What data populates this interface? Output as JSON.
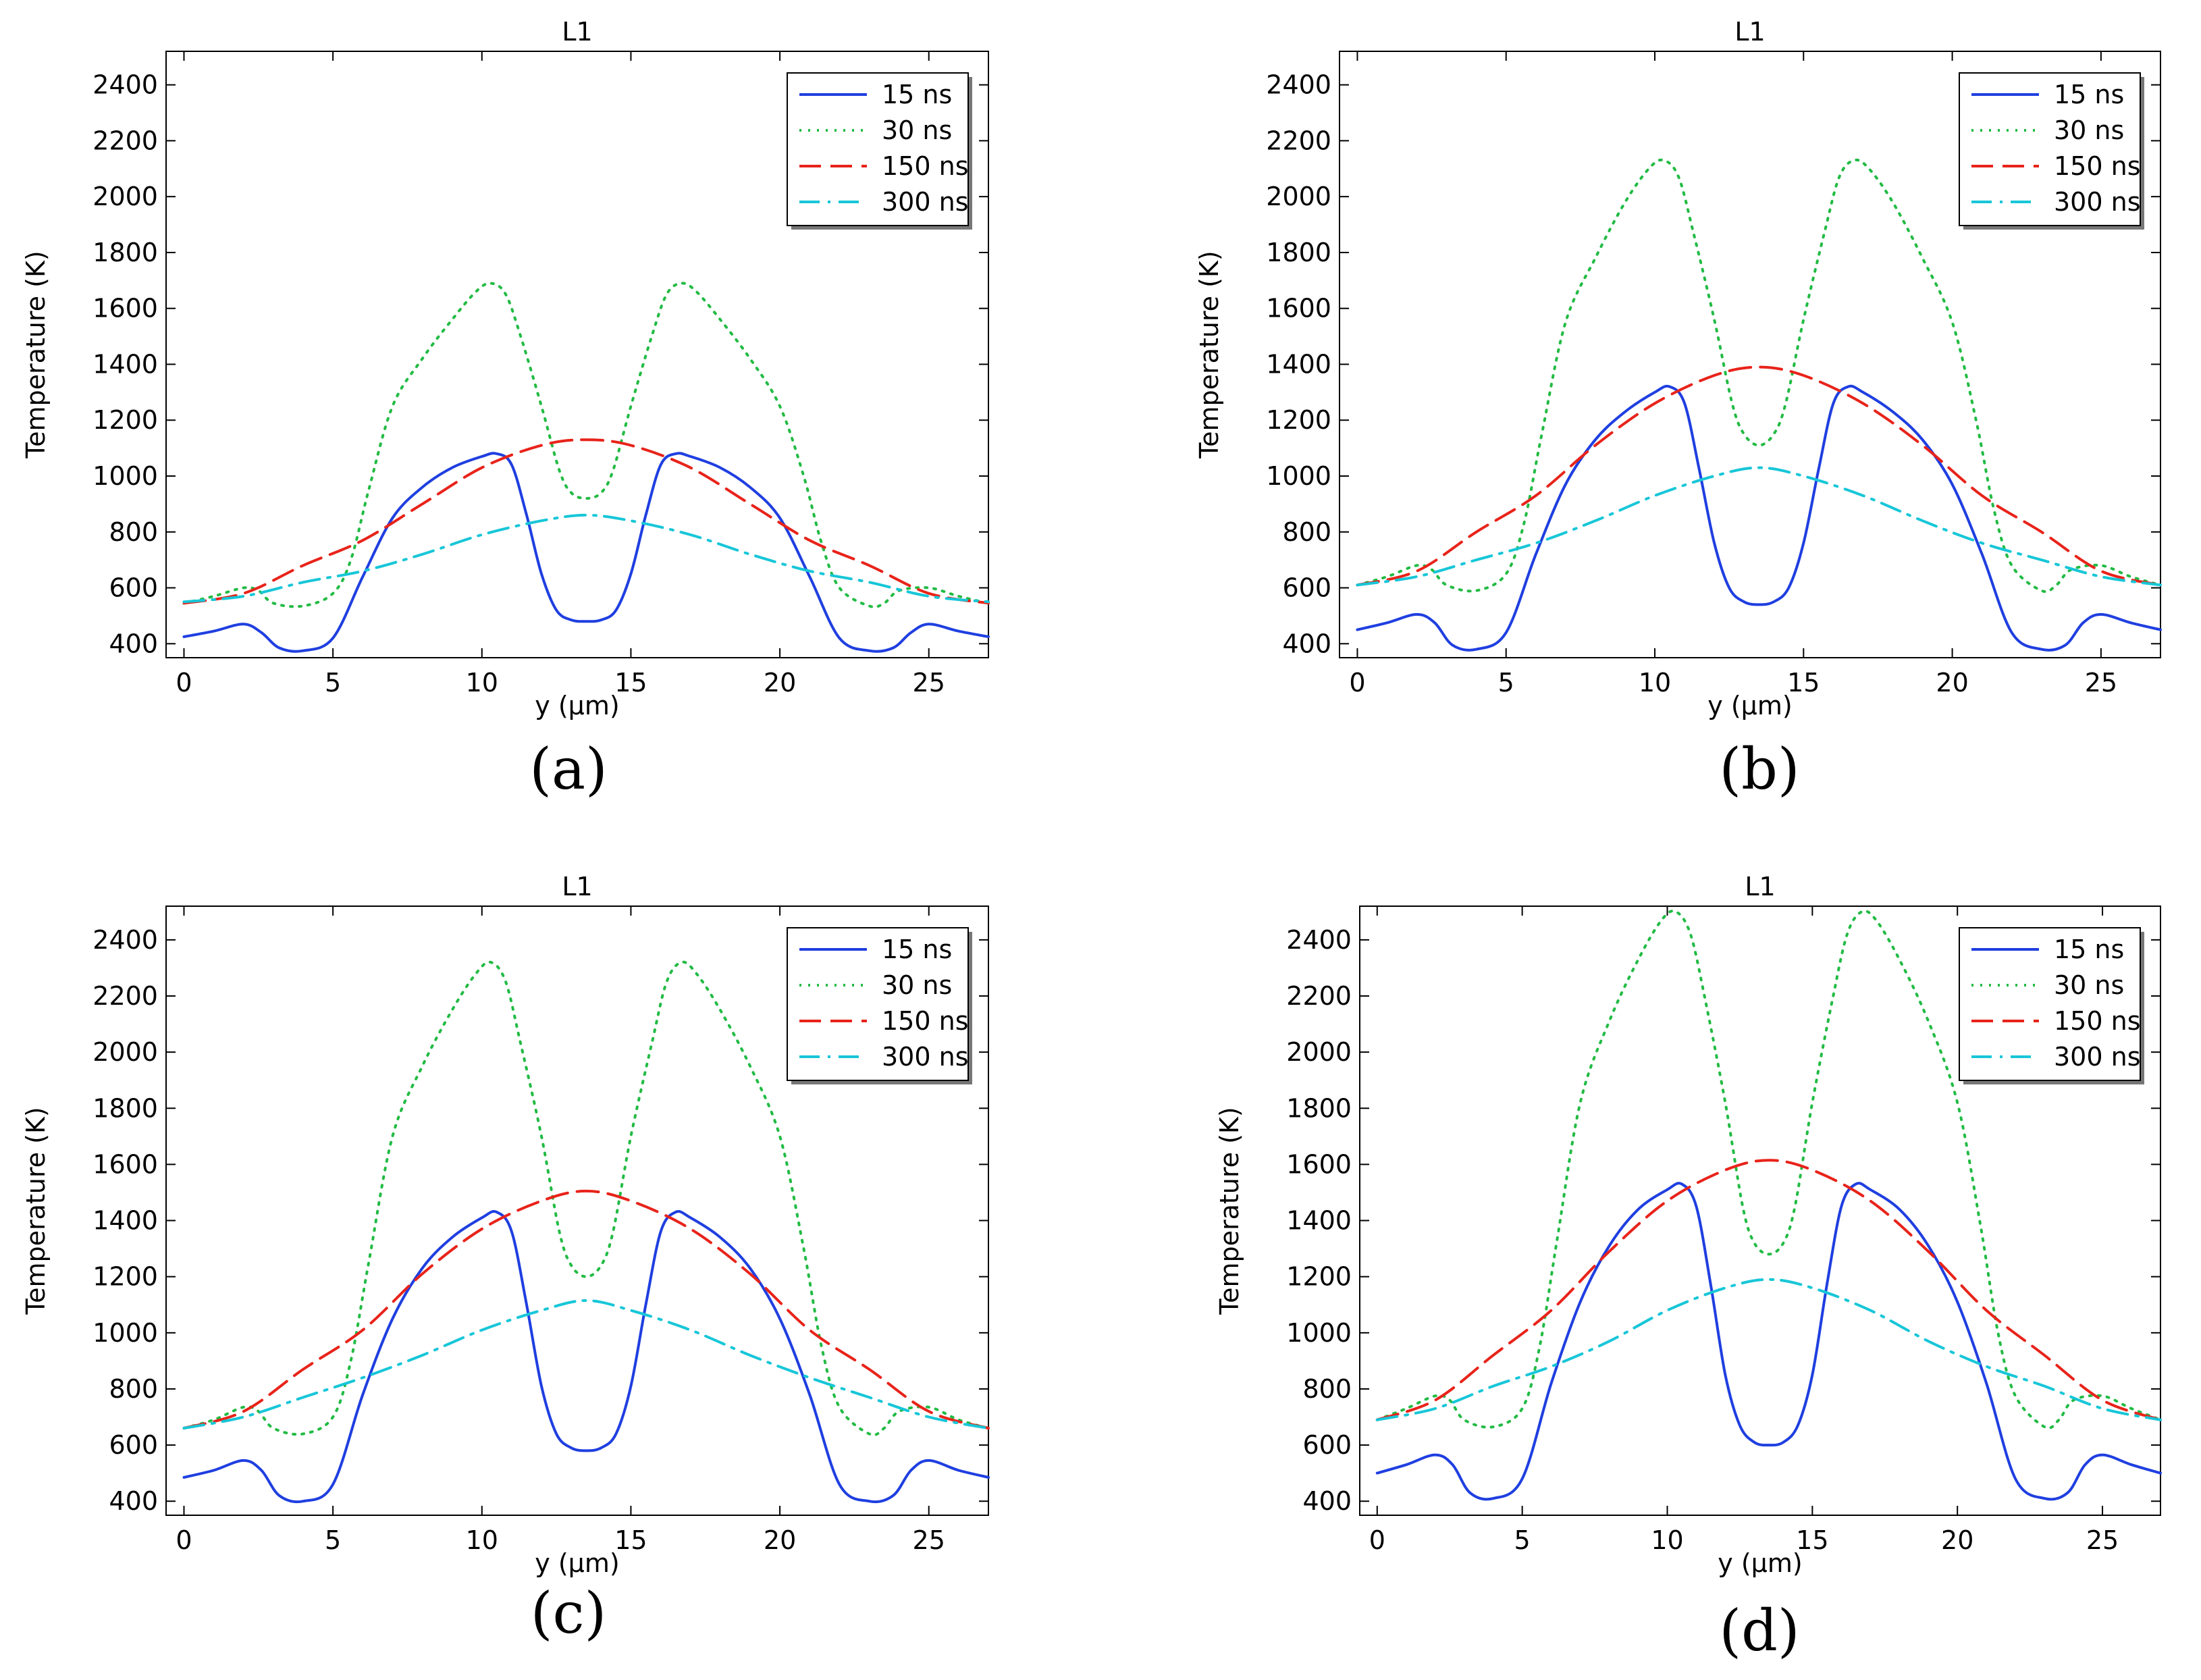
{
  "chart_data": [
    {
      "type": "line",
      "title": "L1",
      "caption": "(a)",
      "xlabel": "y (µm)",
      "ylabel": "Temperature (K)",
      "xlim": [
        -0.6,
        27
      ],
      "ylim": [
        350,
        2520
      ],
      "xticks": [
        0,
        5,
        10,
        15,
        20,
        25
      ],
      "yticks": [
        400,
        600,
        800,
        1000,
        1200,
        1400,
        1600,
        1800,
        2000,
        2200,
        2400
      ],
      "grid": false,
      "legend_position": "top-right",
      "series": [
        {
          "name": "15 ns",
          "color": "#1f3fe0",
          "dash": "solid",
          "x": [
            0,
            1,
            2,
            2.6,
            3.2,
            4,
            5,
            6,
            7,
            8,
            9,
            10,
            10.5,
            11,
            11.5,
            12,
            12.5,
            13,
            13.5,
            14,
            14.5,
            15,
            15.5,
            16,
            16.5,
            17,
            18,
            19,
            20,
            21,
            22,
            23,
            23.8,
            24.4,
            25,
            26,
            27
          ],
          "y": [
            425,
            445,
            470,
            440,
            385,
            375,
            420,
            640,
            850,
            960,
            1030,
            1070,
            1080,
            1040,
            860,
            650,
            520,
            485,
            480,
            485,
            520,
            650,
            860,
            1040,
            1080,
            1070,
            1030,
            960,
            850,
            640,
            420,
            375,
            385,
            440,
            470,
            445,
            425
          ]
        },
        {
          "name": "30 ns",
          "color": "#22bb44",
          "dash": "dotted",
          "x": [
            0,
            1,
            2,
            2.5,
            3,
            4,
            5,
            5.6,
            6.2,
            7,
            8,
            9,
            9.8,
            10.3,
            10.8,
            11.3,
            12,
            12.6,
            13,
            13.5,
            14,
            14.4,
            15,
            15.7,
            16.2,
            16.7,
            17.2,
            18,
            19,
            20,
            20.8,
            21.4,
            22,
            23,
            23.5,
            24,
            25,
            26,
            27
          ],
          "y": [
            545,
            570,
            600,
            590,
            545,
            535,
            580,
            700,
            950,
            1250,
            1420,
            1560,
            1660,
            1690,
            1650,
            1500,
            1250,
            1020,
            940,
            920,
            940,
            1020,
            1250,
            1500,
            1650,
            1690,
            1660,
            1560,
            1420,
            1250,
            1000,
            760,
            600,
            535,
            545,
            590,
            600,
            570,
            545
          ]
        },
        {
          "name": "150 ns",
          "color": "#e8231a",
          "dash": "dashed",
          "x": [
            0,
            2,
            4,
            6,
            8,
            10,
            12,
            13.5,
            15,
            17,
            19,
            21,
            23,
            25,
            27
          ],
          "y": [
            545,
            580,
            680,
            770,
            900,
            1030,
            1110,
            1130,
            1110,
            1030,
            900,
            770,
            680,
            580,
            545
          ]
        },
        {
          "name": "300 ns",
          "color": "#17c6d8",
          "dash": "dashdot",
          "x": [
            0,
            2,
            4,
            6,
            8,
            10,
            12,
            13.5,
            15,
            17,
            19,
            21,
            23,
            25,
            27
          ],
          "y": [
            550,
            570,
            620,
            660,
            720,
            790,
            840,
            860,
            840,
            790,
            720,
            660,
            620,
            570,
            550
          ]
        }
      ]
    },
    {
      "type": "line",
      "title": "L1",
      "caption": "(b)",
      "xlabel": "y (µm)",
      "ylabel": "Temperature (K)",
      "xlim": [
        -0.6,
        27
      ],
      "ylim": [
        350,
        2520
      ],
      "xticks": [
        0,
        5,
        10,
        15,
        20,
        25
      ],
      "yticks": [
        400,
        600,
        800,
        1000,
        1200,
        1400,
        1600,
        1800,
        2000,
        2200,
        2400
      ],
      "grid": false,
      "legend_position": "top-right",
      "series": [
        {
          "name": "15 ns",
          "color": "#1f3fe0",
          "dash": "solid",
          "x": [
            0,
            1,
            2,
            2.6,
            3.2,
            4,
            5,
            6,
            7,
            8,
            9,
            10,
            10.5,
            11,
            11.5,
            12,
            12.5,
            13,
            13.5,
            14,
            14.5,
            15,
            15.5,
            16,
            16.5,
            17,
            18,
            19,
            20,
            21,
            22,
            23,
            23.8,
            24.4,
            25,
            26,
            27
          ],
          "y": [
            450,
            475,
            505,
            475,
            395,
            380,
            440,
            720,
            970,
            1130,
            1230,
            1300,
            1320,
            1260,
            1020,
            760,
            600,
            550,
            540,
            550,
            600,
            760,
            1020,
            1260,
            1320,
            1300,
            1230,
            1130,
            970,
            720,
            440,
            380,
            395,
            475,
            505,
            475,
            450
          ]
        },
        {
          "name": "30 ns",
          "color": "#22bb44",
          "dash": "dotted",
          "x": [
            0,
            1,
            2,
            2.5,
            3,
            4,
            5,
            5.6,
            6.2,
            7,
            8,
            9,
            9.8,
            10.3,
            10.8,
            11.3,
            12,
            12.6,
            13,
            13.5,
            14,
            14.4,
            15,
            15.7,
            16.2,
            16.7,
            17.2,
            18,
            19,
            20,
            20.8,
            21.4,
            22,
            23,
            23.5,
            24,
            25,
            26,
            27
          ],
          "y": [
            610,
            640,
            680,
            665,
            610,
            590,
            650,
            830,
            1150,
            1550,
            1780,
            1980,
            2100,
            2130,
            2070,
            1870,
            1560,
            1260,
            1150,
            1110,
            1150,
            1260,
            1560,
            1870,
            2070,
            2130,
            2100,
            1980,
            1780,
            1550,
            1200,
            880,
            680,
            590,
            610,
            665,
            680,
            640,
            610
          ]
        },
        {
          "name": "150 ns",
          "color": "#e8231a",
          "dash": "dashed",
          "x": [
            0,
            2,
            4,
            6,
            8,
            10,
            12,
            13.5,
            15,
            17,
            19,
            21,
            23,
            25,
            27
          ],
          "y": [
            610,
            660,
            800,
            930,
            1110,
            1260,
            1360,
            1390,
            1360,
            1260,
            1110,
            930,
            800,
            660,
            610
          ]
        },
        {
          "name": "300 ns",
          "color": "#17c6d8",
          "dash": "dashdot",
          "x": [
            0,
            2,
            4,
            6,
            8,
            10,
            12,
            13.5,
            15,
            17,
            19,
            21,
            23,
            25,
            27
          ],
          "y": [
            610,
            640,
            700,
            760,
            840,
            930,
            1000,
            1030,
            1000,
            930,
            840,
            760,
            700,
            640,
            610
          ]
        }
      ]
    },
    {
      "type": "line",
      "title": "L1",
      "caption": "(c)",
      "xlabel": "y (µm)",
      "ylabel": "Temperature (K)",
      "xlim": [
        -0.6,
        27
      ],
      "ylim": [
        350,
        2520
      ],
      "xticks": [
        0,
        5,
        10,
        15,
        20,
        25
      ],
      "yticks": [
        400,
        600,
        800,
        1000,
        1200,
        1400,
        1600,
        1800,
        2000,
        2200,
        2400
      ],
      "grid": false,
      "legend_position": "top-right",
      "series": [
        {
          "name": "15 ns",
          "color": "#1f3fe0",
          "dash": "solid",
          "x": [
            0,
            1,
            2,
            2.6,
            3.2,
            4,
            5,
            6,
            7,
            8,
            9,
            10,
            10.5,
            11,
            11.5,
            12,
            12.5,
            13,
            13.5,
            14,
            14.5,
            15,
            15.5,
            16,
            16.5,
            17,
            18,
            19,
            20,
            21,
            22,
            23,
            23.8,
            24.4,
            25,
            26,
            27
          ],
          "y": [
            485,
            510,
            545,
            510,
            420,
            400,
            460,
            780,
            1050,
            1230,
            1340,
            1410,
            1430,
            1360,
            1100,
            810,
            640,
            590,
            580,
            590,
            640,
            810,
            1100,
            1360,
            1430,
            1410,
            1340,
            1230,
            1050,
            780,
            460,
            400,
            420,
            510,
            545,
            510,
            485
          ]
        },
        {
          "name": "30 ns",
          "color": "#22bb44",
          "dash": "dotted",
          "x": [
            0,
            1,
            2,
            2.5,
            3,
            4,
            5,
            5.6,
            6.2,
            7,
            8,
            9,
            9.8,
            10.3,
            10.8,
            11.3,
            12,
            12.6,
            13,
            13.5,
            14,
            14.4,
            15,
            15.7,
            16.2,
            16.7,
            17.2,
            18,
            19,
            20,
            20.8,
            21.4,
            22,
            23,
            23.5,
            24,
            25,
            26,
            27
          ],
          "y": [
            660,
            690,
            735,
            720,
            660,
            640,
            700,
            900,
            1250,
            1700,
            1950,
            2150,
            2280,
            2320,
            2250,
            2030,
            1700,
            1360,
            1240,
            1200,
            1240,
            1360,
            1700,
            2030,
            2250,
            2320,
            2280,
            2150,
            1950,
            1700,
            1300,
            950,
            735,
            640,
            660,
            720,
            735,
            690,
            660
          ]
        },
        {
          "name": "150 ns",
          "color": "#e8231a",
          "dash": "dashed",
          "x": [
            0,
            2,
            4,
            6,
            8,
            10,
            12,
            13.5,
            15,
            17,
            19,
            21,
            23,
            25,
            27
          ],
          "y": [
            660,
            720,
            870,
            1010,
            1210,
            1370,
            1470,
            1505,
            1470,
            1370,
            1210,
            1010,
            870,
            720,
            660
          ]
        },
        {
          "name": "300 ns",
          "color": "#17c6d8",
          "dash": "dashdot",
          "x": [
            0,
            2,
            4,
            6,
            8,
            10,
            12,
            13.5,
            15,
            17,
            19,
            21,
            23,
            25,
            27
          ],
          "y": [
            660,
            700,
            770,
            840,
            920,
            1010,
            1080,
            1115,
            1080,
            1010,
            920,
            840,
            770,
            700,
            660
          ]
        }
      ]
    },
    {
      "type": "line",
      "title": "L1",
      "caption": "(d)",
      "xlabel": "y (µm)",
      "ylabel": "Temperature (K)",
      "xlim": [
        -0.6,
        27
      ],
      "ylim": [
        350,
        2520
      ],
      "xticks": [
        0,
        5,
        10,
        15,
        20,
        25
      ],
      "yticks": [
        400,
        600,
        800,
        1000,
        1200,
        1400,
        1600,
        1800,
        2000,
        2200,
        2400
      ],
      "grid": false,
      "legend_position": "top-right",
      "series": [
        {
          "name": "15 ns",
          "color": "#1f3fe0",
          "dash": "solid",
          "x": [
            0,
            1,
            2,
            2.6,
            3.2,
            4,
            5,
            6,
            7,
            8,
            9,
            10,
            10.5,
            11,
            11.5,
            12,
            12.5,
            13,
            13.5,
            14,
            14.5,
            15,
            15.5,
            16,
            16.5,
            17,
            18,
            19,
            20,
            21,
            22,
            23,
            23.8,
            24.4,
            25,
            26,
            27
          ],
          "y": [
            500,
            530,
            565,
            530,
            430,
            410,
            480,
            820,
            1110,
            1310,
            1440,
            1510,
            1530,
            1450,
            1170,
            850,
            670,
            610,
            600,
            610,
            670,
            850,
            1170,
            1450,
            1530,
            1510,
            1440,
            1310,
            1110,
            820,
            480,
            410,
            430,
            530,
            565,
            530,
            500
          ]
        },
        {
          "name": "30 ns",
          "color": "#22bb44",
          "dash": "dotted",
          "x": [
            0,
            1,
            2,
            2.5,
            3,
            4,
            5,
            5.6,
            6.2,
            7,
            8,
            9,
            9.8,
            10.3,
            10.8,
            11.3,
            12,
            12.6,
            13,
            13.5,
            14,
            14.4,
            15,
            15.7,
            16.2,
            16.7,
            17.2,
            18,
            19,
            20,
            20.8,
            21.4,
            22,
            23,
            23.5,
            24,
            25,
            26,
            27
          ],
          "y": [
            690,
            730,
            775,
            760,
            690,
            665,
            730,
            950,
            1330,
            1820,
            2110,
            2330,
            2470,
            2500,
            2420,
            2190,
            1820,
            1450,
            1320,
            1280,
            1320,
            1450,
            1820,
            2190,
            2420,
            2500,
            2470,
            2330,
            2110,
            1820,
            1380,
            1000,
            775,
            665,
            690,
            760,
            775,
            730,
            690
          ]
        },
        {
          "name": "150 ns",
          "color": "#e8231a",
          "dash": "dashed",
          "x": [
            0,
            2,
            4,
            6,
            8,
            10,
            12,
            13.5,
            15,
            17,
            19,
            21,
            23,
            25,
            27
          ],
          "y": [
            690,
            760,
            920,
            1080,
            1290,
            1470,
            1580,
            1615,
            1580,
            1470,
            1290,
            1080,
            920,
            760,
            690
          ]
        },
        {
          "name": "300 ns",
          "color": "#17c6d8",
          "dash": "dashdot",
          "x": [
            0,
            2,
            4,
            6,
            8,
            10,
            12,
            13.5,
            15,
            17,
            19,
            21,
            23,
            25,
            27
          ],
          "y": [
            690,
            730,
            810,
            880,
            970,
            1080,
            1160,
            1190,
            1160,
            1080,
            970,
            880,
            810,
            730,
            690
          ]
        }
      ]
    }
  ]
}
